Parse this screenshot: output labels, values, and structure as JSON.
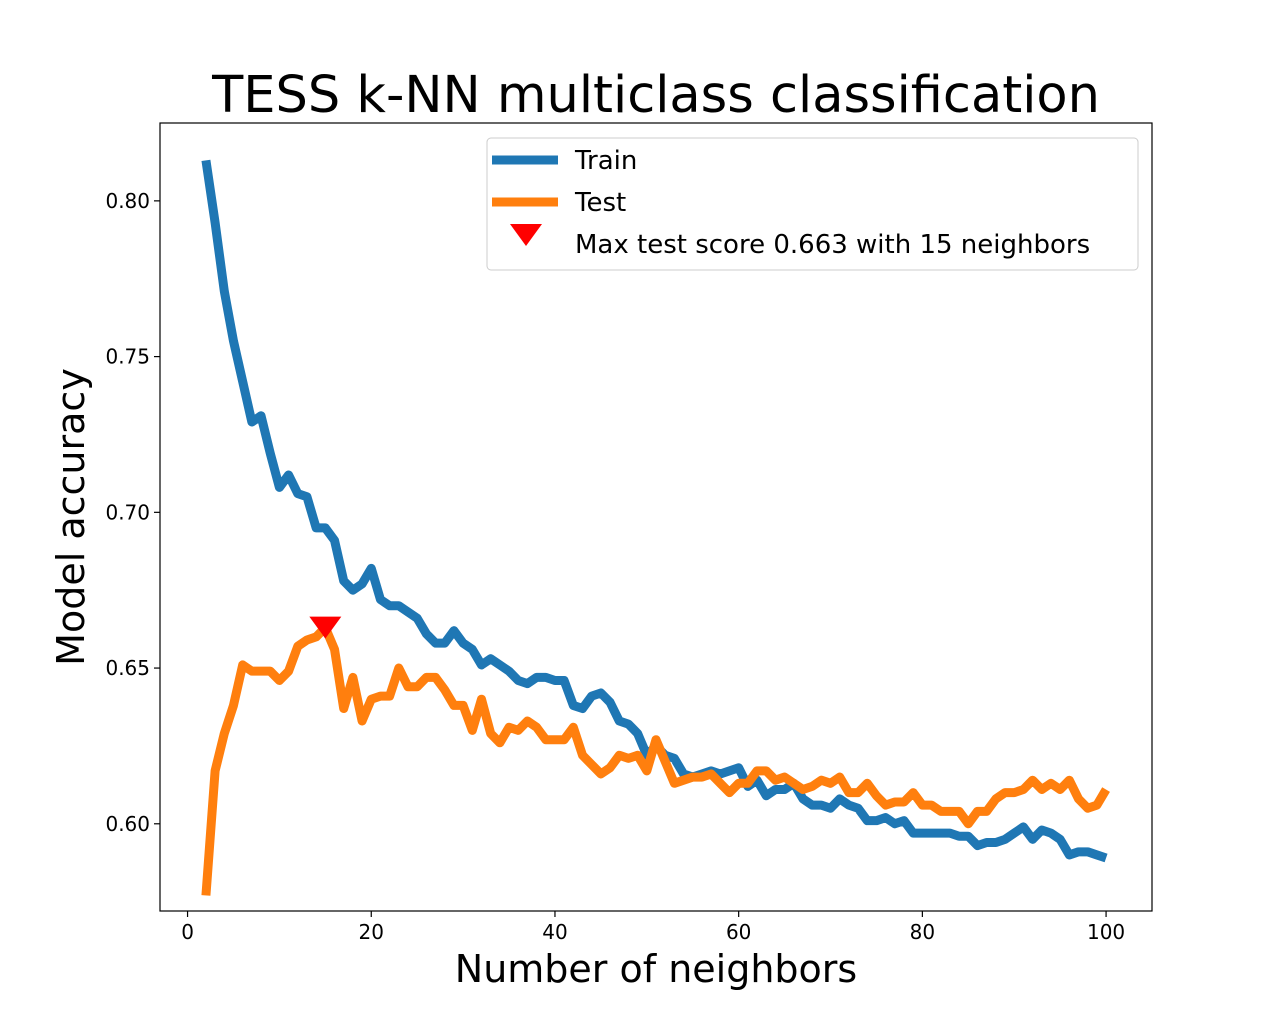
{
  "chart_data": {
    "type": "line",
    "title": "TESS k-NN multiclass classification",
    "xlabel": "Number of neighbors",
    "ylabel": "Model accuracy",
    "xlim": [
      -3,
      105
    ],
    "ylim": [
      0.572,
      0.825
    ],
    "xticks": [
      0,
      20,
      40,
      60,
      80,
      100
    ],
    "yticks": [
      0.6,
      0.65,
      0.7,
      0.75,
      0.8
    ],
    "grid": false,
    "legend_position": "top-right",
    "series": [
      {
        "name": "Train",
        "color": "#1f77b4",
        "x": [
          2,
          3,
          4,
          5,
          6,
          7,
          8,
          9,
          10,
          11,
          12,
          13,
          14,
          15,
          16,
          17,
          18,
          19,
          20,
          21,
          22,
          23,
          24,
          25,
          26,
          27,
          28,
          29,
          30,
          31,
          32,
          33,
          34,
          35,
          36,
          37,
          38,
          39,
          40,
          41,
          42,
          43,
          44,
          45,
          46,
          47,
          48,
          49,
          50,
          51,
          52,
          53,
          54,
          55,
          56,
          57,
          58,
          59,
          60,
          61,
          62,
          63,
          64,
          65,
          66,
          67,
          68,
          69,
          70,
          71,
          72,
          73,
          74,
          75,
          76,
          77,
          78,
          79,
          80,
          81,
          82,
          83,
          84,
          85,
          86,
          87,
          88,
          89,
          90,
          91,
          92,
          93,
          94,
          95,
          96,
          97,
          98,
          99,
          100
        ],
        "y": [
          0.813,
          0.793,
          0.771,
          0.755,
          0.742,
          0.729,
          0.731,
          0.719,
          0.708,
          0.712,
          0.706,
          0.705,
          0.695,
          0.695,
          0.691,
          0.678,
          0.675,
          0.677,
          0.682,
          0.672,
          0.67,
          0.67,
          0.668,
          0.666,
          0.661,
          0.658,
          0.658,
          0.662,
          0.658,
          0.656,
          0.651,
          0.653,
          0.651,
          0.649,
          0.646,
          0.645,
          0.647,
          0.647,
          0.646,
          0.646,
          0.638,
          0.637,
          0.641,
          0.642,
          0.639,
          0.633,
          0.632,
          0.629,
          0.622,
          0.625,
          0.622,
          0.621,
          0.616,
          0.615,
          0.616,
          0.617,
          0.616,
          0.617,
          0.618,
          0.612,
          0.614,
          0.609,
          0.611,
          0.611,
          0.613,
          0.608,
          0.606,
          0.606,
          0.605,
          0.608,
          0.606,
          0.605,
          0.601,
          0.601,
          0.602,
          0.6,
          0.601,
          0.597,
          0.597,
          0.597,
          0.597,
          0.597,
          0.596,
          0.596,
          0.593,
          0.594,
          0.594,
          0.595,
          0.597,
          0.599,
          0.595,
          0.598,
          0.597,
          0.595,
          0.59,
          0.591,
          0.591,
          0.59,
          0.589
        ]
      },
      {
        "name": "Test",
        "color": "#ff7f0e",
        "x": [
          2,
          3,
          4,
          5,
          6,
          7,
          8,
          9,
          10,
          11,
          12,
          13,
          14,
          15,
          16,
          17,
          18,
          19,
          20,
          21,
          22,
          23,
          24,
          25,
          26,
          27,
          28,
          29,
          30,
          31,
          32,
          33,
          34,
          35,
          36,
          37,
          38,
          39,
          40,
          41,
          42,
          43,
          44,
          45,
          46,
          47,
          48,
          49,
          50,
          51,
          52,
          53,
          54,
          55,
          56,
          57,
          58,
          59,
          60,
          61,
          62,
          63,
          64,
          65,
          66,
          67,
          68,
          69,
          70,
          71,
          72,
          73,
          74,
          75,
          76,
          77,
          78,
          79,
          80,
          81,
          82,
          83,
          84,
          85,
          86,
          87,
          88,
          89,
          90,
          91,
          92,
          93,
          94,
          95,
          96,
          97,
          98,
          99,
          100
        ],
        "y": [
          0.577,
          0.617,
          0.629,
          0.638,
          0.651,
          0.649,
          0.649,
          0.649,
          0.646,
          0.649,
          0.657,
          0.659,
          0.66,
          0.663,
          0.656,
          0.637,
          0.647,
          0.633,
          0.64,
          0.641,
          0.641,
          0.65,
          0.644,
          0.644,
          0.647,
          0.647,
          0.643,
          0.638,
          0.638,
          0.63,
          0.64,
          0.629,
          0.626,
          0.631,
          0.63,
          0.633,
          0.631,
          0.627,
          0.627,
          0.627,
          0.631,
          0.622,
          0.619,
          0.616,
          0.618,
          0.622,
          0.621,
          0.622,
          0.617,
          0.627,
          0.62,
          0.613,
          0.614,
          0.615,
          0.615,
          0.616,
          0.613,
          0.61,
          0.613,
          0.613,
          0.617,
          0.617,
          0.614,
          0.615,
          0.613,
          0.611,
          0.612,
          0.614,
          0.613,
          0.615,
          0.61,
          0.61,
          0.613,
          0.609,
          0.606,
          0.607,
          0.607,
          0.61,
          0.606,
          0.606,
          0.604,
          0.604,
          0.604,
          0.6,
          0.604,
          0.604,
          0.608,
          0.61,
          0.61,
          0.611,
          0.614,
          0.611,
          0.613,
          0.611,
          0.614,
          0.608,
          0.605,
          0.606,
          0.611
        ]
      }
    ],
    "marker": {
      "label": "Max test score 0.663 with 15 neighbors",
      "x": 15,
      "y": 0.663,
      "color": "#ff0000",
      "shape": "triangle-down"
    }
  }
}
